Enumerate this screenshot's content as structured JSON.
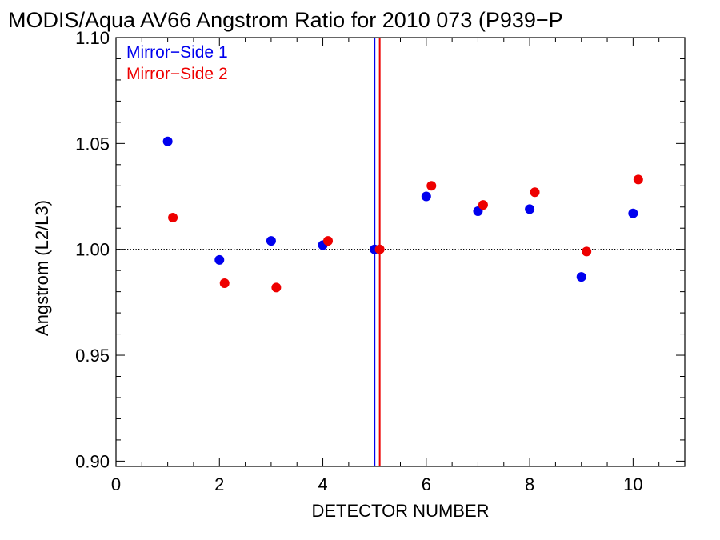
{
  "chart_data": {
    "type": "scatter",
    "title": "MODIS/Aqua AV66 Angstrom Ratio for 2010 073 (P939−P",
    "xlabel": "DETECTOR NUMBER",
    "ylabel": "Angstrom (L2/L3)",
    "xlim": [
      0,
      11
    ],
    "ylim": [
      0.8975,
      1.1
    ],
    "x_ticks": [
      0,
      2,
      4,
      6,
      8,
      10
    ],
    "x_tick_labels": [
      "0",
      "2",
      "4",
      "6",
      "8",
      "10"
    ],
    "y_ticks": [
      0.9,
      0.95,
      1.0,
      1.05,
      1.1
    ],
    "y_tick_labels": [
      "0.90",
      "0.95",
      "1.00",
      "1.05",
      "1.10"
    ],
    "reference_line": {
      "y": 1.0,
      "style": "dotted"
    },
    "vertical_lines": [
      {
        "x": 5.0,
        "color": "#0000ee"
      },
      {
        "x": 5.1,
        "color": "#ee0000"
      }
    ],
    "legend_position": "top-left",
    "series": [
      {
        "name": "Mirror−Side 1",
        "color": "#0000ee",
        "x": [
          1,
          2,
          3,
          4,
          5,
          6,
          7,
          8,
          9,
          10
        ],
        "y": [
          1.051,
          0.995,
          1.004,
          1.002,
          1.0,
          1.025,
          1.018,
          1.019,
          0.987,
          1.017
        ]
      },
      {
        "name": "Mirror−Side 2",
        "color": "#ee0000",
        "x": [
          1.1,
          2.1,
          3.1,
          4.1,
          5.1,
          6.1,
          7.1,
          8.1,
          9.1,
          10.1
        ],
        "y": [
          1.015,
          0.984,
          0.982,
          1.004,
          1.0,
          1.03,
          1.021,
          1.027,
          0.999,
          1.033
        ]
      }
    ]
  }
}
